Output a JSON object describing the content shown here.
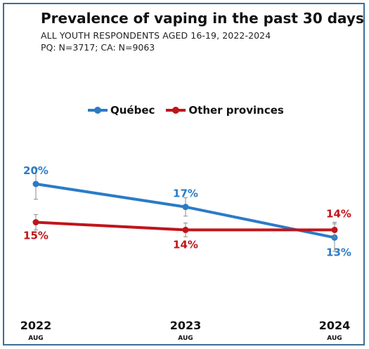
{
  "header": {
    "title": "Prevalence of vaping in the past 30 days",
    "subtitle_line1": "ALL YOUTH RESPONDENTS AGED 16-19, 2022-2024",
    "subtitle_line2": "PQ: N=3717; CA: N=9063"
  },
  "colors": {
    "quebec": "#2b7bc6",
    "other": "#c0141b",
    "frame": "#3c6e96"
  },
  "chart_data": {
    "type": "line",
    "title": "Prevalence of vaping in the past 30 days",
    "categories": [
      "2022",
      "2023",
      "2024"
    ],
    "category_sublabels": [
      "AUG",
      "AUG",
      "AUG"
    ],
    "ylim": [
      0,
      25
    ],
    "grid": false,
    "legend_position": "top",
    "series": [
      {
        "name": "Québec",
        "color": "#2b7bc6",
        "values": [
          20,
          17,
          13
        ],
        "labels": [
          "20%",
          "17%",
          "13%"
        ],
        "error": [
          2,
          1.2,
          1.8
        ]
      },
      {
        "name": "Other provinces",
        "color": "#c0141b",
        "values": [
          15,
          14,
          14
        ],
        "labels": [
          "15%",
          "14%",
          "14%"
        ],
        "error": [
          1,
          0.9,
          1
        ]
      }
    ]
  }
}
